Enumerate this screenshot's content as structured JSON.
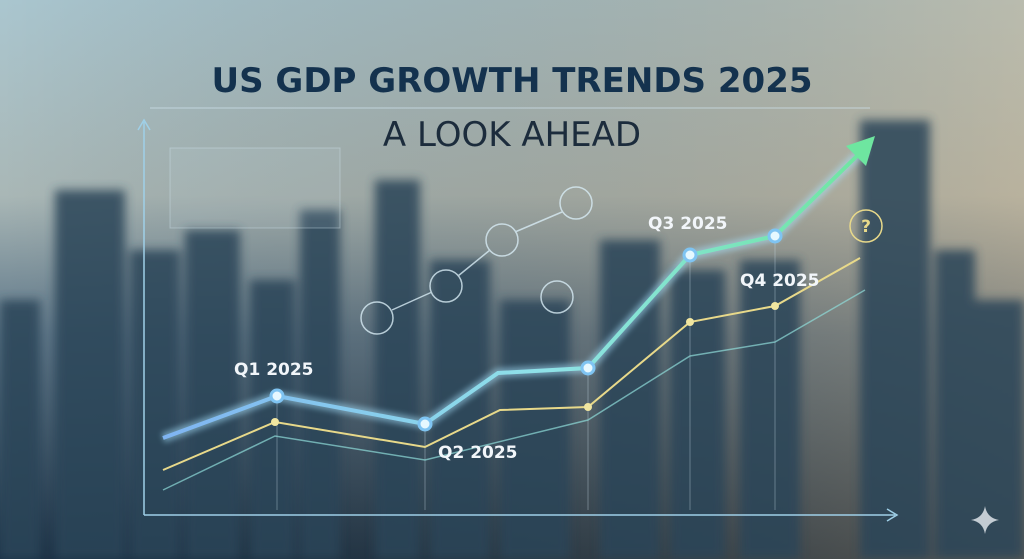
{
  "header": {
    "title": "US GDP GROWTH TRENDS 2025",
    "subtitle": "A LOOK AHEAD"
  },
  "labels": [
    "Q1 2025",
    "Q2 2025",
    "Q3 2025",
    "Q4 2025"
  ],
  "badge": "?"
}
